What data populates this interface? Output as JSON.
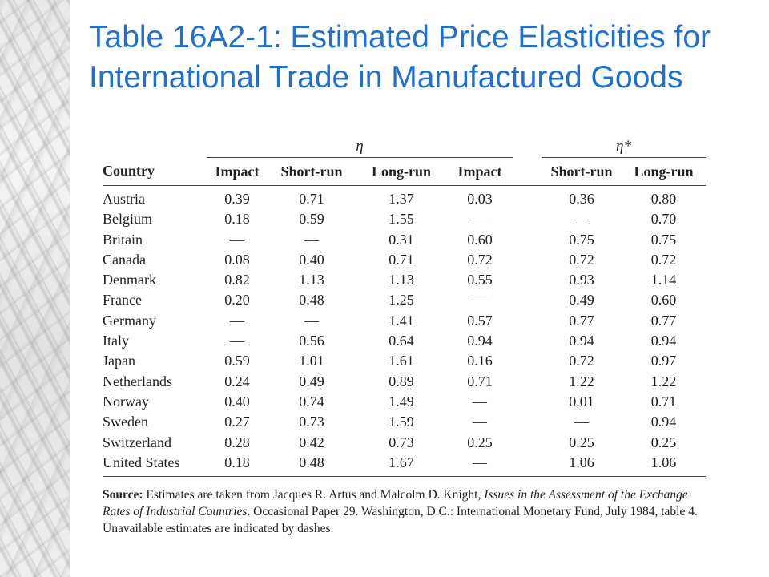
{
  "slide": {
    "title": "Table 16A2-1: Estimated Price Elasticities for International Trade in Manufactured Goods"
  },
  "table": {
    "group_headers": [
      "η",
      "η*"
    ],
    "columns": [
      "Country",
      "Impact",
      "Short-run",
      "Long-run",
      "Impact",
      "Short-run",
      "Long-run"
    ],
    "rows": [
      [
        "Austria",
        "0.39",
        "0.71",
        "1.37",
        "0.03",
        "0.36",
        "0.80"
      ],
      [
        "Belgium",
        "0.18",
        "0.59",
        "1.55",
        "—",
        "—",
        "0.70"
      ],
      [
        "Britain",
        "—",
        "—",
        "0.31",
        "0.60",
        "0.75",
        "0.75"
      ],
      [
        "Canada",
        "0.08",
        "0.40",
        "0.71",
        "0.72",
        "0.72",
        "0.72"
      ],
      [
        "Denmark",
        "0.82",
        "1.13",
        "1.13",
        "0.55",
        "0.93",
        "1.14"
      ],
      [
        "France",
        "0.20",
        "0.48",
        "1.25",
        "—",
        "0.49",
        "0.60"
      ],
      [
        "Germany",
        "—",
        "—",
        "1.41",
        "0.57",
        "0.77",
        "0.77"
      ],
      [
        "Italy",
        "—",
        "0.56",
        "0.64",
        "0.94",
        "0.94",
        "0.94"
      ],
      [
        "Japan",
        "0.59",
        "1.01",
        "1.61",
        "0.16",
        "0.72",
        "0.97"
      ],
      [
        "Netherlands",
        "0.24",
        "0.49",
        "0.89",
        "0.71",
        "1.22",
        "1.22"
      ],
      [
        "Norway",
        "0.40",
        "0.74",
        "1.49",
        "—",
        "0.01",
        "0.71"
      ],
      [
        "Sweden",
        "0.27",
        "0.73",
        "1.59",
        "—",
        "—",
        "0.94"
      ],
      [
        "Switzerland",
        "0.28",
        "0.42",
        "0.73",
        "0.25",
        "0.25",
        "0.25"
      ],
      [
        "United States",
        "0.18",
        "0.48",
        "1.67",
        "—",
        "1.06",
        "1.06"
      ]
    ]
  },
  "source": {
    "label": "Source:",
    "text1": " Estimates are taken from Jacques R. Artus and Malcolm D. Knight, ",
    "italic": "Issues in the Assessment of the Exchange Rates of Industrial Countries",
    "text2": ". Occasional Paper 29. Washington, D.C.: International Monetary Fund, July 1984, table 4. Unavailable estimates are indicated by dashes."
  }
}
